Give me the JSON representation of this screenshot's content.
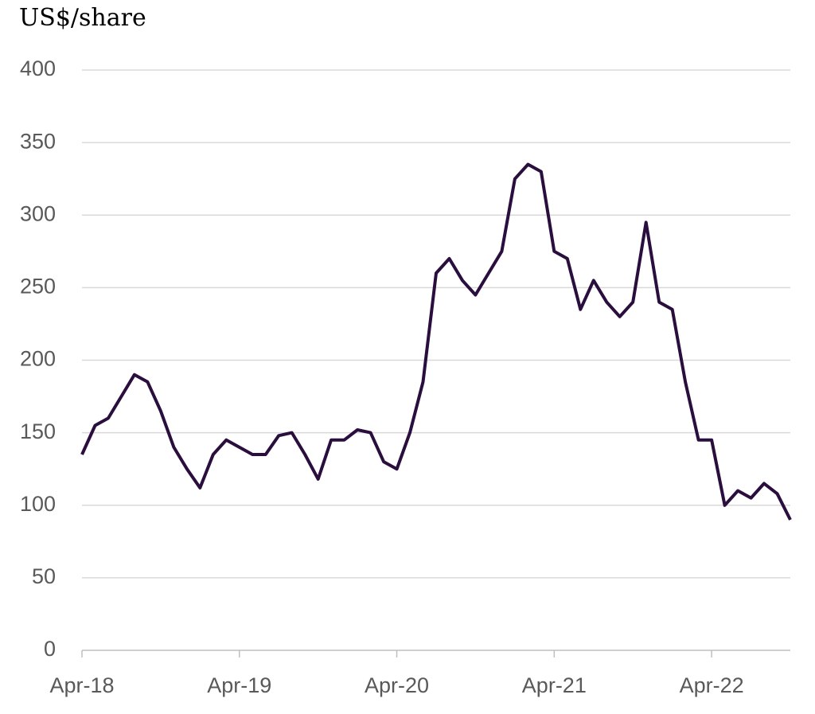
{
  "chart_data": {
    "type": "line",
    "y_label": "US$/share",
    "x": [
      "2018-04",
      "2018-05",
      "2018-06",
      "2018-07",
      "2018-08",
      "2018-09",
      "2018-10",
      "2018-11",
      "2018-12",
      "2019-01",
      "2019-02",
      "2019-03",
      "2019-04",
      "2019-05",
      "2019-06",
      "2019-07",
      "2019-08",
      "2019-09",
      "2019-10",
      "2019-11",
      "2019-12",
      "2020-01",
      "2020-02",
      "2020-03",
      "2020-04",
      "2020-05",
      "2020-06",
      "2020-07",
      "2020-08",
      "2020-09",
      "2020-10",
      "2020-11",
      "2020-12",
      "2021-01",
      "2021-02",
      "2021-03",
      "2021-04",
      "2021-05",
      "2021-06",
      "2021-07",
      "2021-08",
      "2021-09",
      "2021-10",
      "2021-11",
      "2021-12",
      "2022-01",
      "2022-02",
      "2022-03",
      "2022-04",
      "2022-05",
      "2022-06",
      "2022-07",
      "2022-08",
      "2022-09",
      "2022-10"
    ],
    "values": [
      135,
      155,
      160,
      175,
      190,
      185,
      165,
      140,
      125,
      112,
      135,
      145,
      140,
      135,
      135,
      148,
      150,
      135,
      118,
      145,
      145,
      152,
      150,
      130,
      125,
      150,
      185,
      260,
      270,
      255,
      245,
      260,
      275,
      325,
      335,
      330,
      275,
      270,
      235,
      255,
      240,
      230,
      240,
      295,
      240,
      235,
      185,
      145,
      145,
      100,
      110,
      105,
      115,
      108,
      90
    ],
    "color": "#2a0f3e",
    "xlim": [
      "2018-04",
      "2022-10"
    ],
    "xticks": [
      {
        "value": "2018-04",
        "label": "Apr-18"
      },
      {
        "value": "2019-04",
        "label": "Apr-19"
      },
      {
        "value": "2020-04",
        "label": "Apr-20"
      },
      {
        "value": "2021-04",
        "label": "Apr-21"
      },
      {
        "value": "2022-04",
        "label": "Apr-22"
      }
    ],
    "ylim": [
      0,
      400
    ],
    "yticks": [
      0,
      50,
      100,
      150,
      200,
      250,
      300,
      350,
      400
    ],
    "grid": true
  }
}
